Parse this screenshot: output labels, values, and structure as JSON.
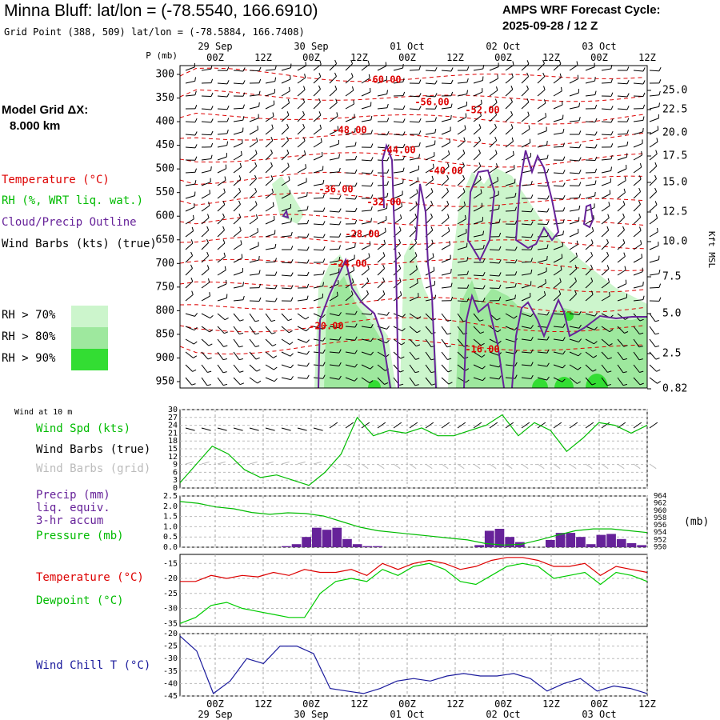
{
  "header": {
    "title": "Minna Bluff:  lat/lon = (-78.5540, 166.6910)",
    "subtitle": "Grid Point (388, 509) lat/lon = (-78.5884, 166.7408)",
    "cycle_line1": "AMPS WRF Forecast Cycle:",
    "cycle_line2": "2025-09-28 / 12  Z"
  },
  "model_grid": {
    "line1": "Model Grid ΔX:",
    "line2": "8.000 km"
  },
  "legend": {
    "temperature": "Temperature (°C)",
    "rh": "RH (%, WRT liq. wat.)",
    "cloud": "Cloud/Precip Outline",
    "wind_barbs": "Wind Barbs (kts) (true)",
    "rh70": "RH > 70%",
    "rh80": "RH > 80%",
    "rh90": "RH > 90%"
  },
  "colors": {
    "temperature": "#dd0000",
    "rh70": "#ccf5cc",
    "rh80": "#9ee89e",
    "rh90": "#33dd33",
    "cloud": "#662299",
    "wind": "#00bb00",
    "dewpoint": "#00cc00",
    "windchill": "#1a1a9c",
    "gridbarbs": "#bbbbbb"
  },
  "time_axis": {
    "hour_labels": [
      "00Z",
      "12Z",
      "00Z",
      "12Z",
      "00Z",
      "12Z",
      "00Z",
      "12Z",
      "00Z",
      "12Z"
    ],
    "date_labels": [
      "29 Sep",
      "30 Sep",
      "01 Oct",
      "02 Oct",
      "03 Oct"
    ]
  },
  "chart_data": [
    {
      "type": "line",
      "panel": "cross-section",
      "yunit": "P (mb)",
      "right_axis_label": "Kft MSL",
      "pressure_ticks": [
        300,
        350,
        400,
        450,
        500,
        550,
        600,
        650,
        700,
        750,
        800,
        850,
        900,
        950
      ],
      "height_ticks": [
        "25.0",
        "22.5",
        "20.0",
        "17.5",
        "15.0",
        "12.5",
        "10.0",
        "7.5",
        "5.0",
        "2.5",
        "0.82"
      ],
      "temperature_labels": [
        "-60.00",
        "-56.00",
        "-52.00",
        "-48.00",
        "-44.00",
        "-40.00",
        "-36.00",
        "-32.00",
        "-28.00",
        "-24.00",
        "-20.00",
        "-16.00"
      ]
    },
    {
      "type": "line",
      "panel": "surface-wind",
      "label": "Wind at 10 m",
      "series_labels": {
        "speed": "Wind Spd (kts)",
        "barbs_true": "Wind Barbs (true)",
        "barbs_grid": "Wind Barbs (grid)"
      },
      "y_ticks": [
        0,
        3,
        6,
        9,
        12,
        15,
        18,
        21,
        24,
        27,
        30
      ],
      "ylim": [
        0,
        30
      ],
      "wind_speed": [
        2,
        9,
        16,
        13,
        7,
        4,
        5,
        3,
        1,
        6,
        13,
        27,
        20,
        22,
        21,
        23,
        20,
        20,
        22,
        24,
        28,
        20,
        25,
        22,
        14,
        19,
        25,
        24,
        21,
        24
      ]
    },
    {
      "type": "bar",
      "panel": "precip-pressure",
      "series_labels": {
        "precip_a": "Precip (mm)",
        "precip_b": "liq. equiv.",
        "precip_c": "3-hr accum",
        "pressure": "Pressure (mb)"
      },
      "y_ticks": [
        "0.0",
        "0.5",
        "1.0",
        "1.5",
        "2.0",
        "2.5"
      ],
      "ylim": [
        0,
        2.5
      ],
      "right_ticks": [
        950,
        952,
        954,
        956,
        958,
        960,
        962,
        964
      ],
      "right_unit": "(mb)",
      "right_lim": [
        950,
        964
      ],
      "precip_mm": [
        0,
        0,
        0,
        0,
        0,
        0,
        0,
        0,
        0,
        0,
        0.05,
        0.15,
        0.5,
        0.95,
        0.85,
        0.95,
        0.4,
        0.15,
        0.05,
        0.05,
        0,
        0,
        0,
        0,
        0,
        0,
        0,
        0,
        0,
        0.1,
        0.8,
        0.9,
        0.5,
        0.25,
        0,
        0,
        0.35,
        0.7,
        0.7,
        0.5,
        0.15,
        0.6,
        0.65,
        0.4,
        0.2,
        0.1
      ],
      "pressure_mb": [
        962.5,
        962,
        961,
        960.5,
        959.5,
        959,
        959.4,
        959.2,
        958.5,
        957,
        955.5,
        954.5,
        954,
        953.5,
        953,
        952.5,
        952,
        951,
        950.6,
        950.8,
        952,
        953.3,
        954.5,
        955,
        955,
        954.5,
        954
      ]
    },
    {
      "type": "line",
      "panel": "temperature-dewpoint",
      "series_labels": {
        "temperature": "Temperature (°C)",
        "dewpoint": "Dewpoint (°C)"
      },
      "y_ticks": [
        -35,
        -30,
        -25,
        -20,
        -15
      ],
      "ylim": [
        -36,
        -12
      ],
      "temperature": [
        -21,
        -21,
        -19,
        -20,
        -19,
        -19.5,
        -18,
        -19,
        -17,
        -18,
        -18,
        -17,
        -19,
        -15,
        -17,
        -15,
        -14,
        -15,
        -17,
        -16,
        -14,
        -13,
        -13,
        -14,
        -16,
        -16,
        -15,
        -19,
        -16,
        -17,
        -18
      ],
      "dewpoint": [
        -35,
        -33,
        -29,
        -28,
        -30,
        -31,
        -32,
        -33,
        -33,
        -25,
        -21,
        -20,
        -21,
        -17,
        -19,
        -16,
        -15,
        -17,
        -21,
        -22,
        -19,
        -16,
        -15,
        -16,
        -20,
        -19,
        -18,
        -22,
        -18,
        -19,
        -21
      ]
    },
    {
      "type": "line",
      "panel": "wind-chill",
      "series_labels": {
        "windchill": "Wind Chill T (°C)"
      },
      "y_ticks": [
        -45,
        -40,
        -35,
        -30,
        -25,
        -20
      ],
      "ylim": [
        -45,
        -20
      ],
      "wind_chill": [
        -21,
        -27,
        -44,
        -39,
        -30,
        -32,
        -25,
        -25,
        -28,
        -42,
        -43,
        -44,
        -42,
        -39,
        -38,
        -39,
        -37,
        -36,
        -37,
        -37,
        -36,
        -38,
        -43,
        -40,
        -38,
        -43,
        -41,
        -42,
        -44
      ]
    }
  ]
}
